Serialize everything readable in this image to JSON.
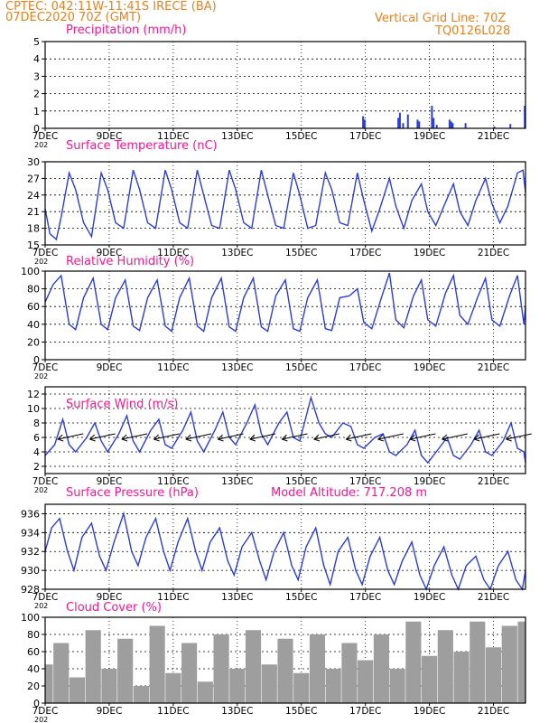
{
  "header": {
    "line1_left": "CPTEC:   042:11W-11:41S   IRECE (BA)",
    "line2_left": "07DEC2020 70Z (GMT)",
    "line1_right": "Vertical Grid Line: 70Z",
    "line2_right": "TQ0126L028"
  },
  "colors": {
    "header": "#e8821e",
    "title": "#ff1493",
    "line": "#2b3de0",
    "bar": "#9e9e9e",
    "arrow": "#000000"
  },
  "x_tick_labels": [
    "7DEC",
    "9DEC",
    "11DEC",
    "13DEC",
    "15DEC",
    "17DEC",
    "19DEC",
    "21DEC"
  ],
  "x_year_label": "202",
  "chart_data": [
    {
      "type": "bar",
      "title": "Precipitation  (mm/h)",
      "xlabel": "",
      "ylabel": "",
      "x_range_days": [
        0,
        15
      ],
      "ylim": [
        0,
        5
      ],
      "yticks": [
        0,
        1,
        2,
        3,
        4,
        5
      ],
      "x": [
        9.9,
        9.95,
        11.0,
        11.05,
        11.15,
        11.3,
        11.6,
        11.65,
        12.05,
        12.1,
        12.2,
        12.6,
        12.65,
        12.7,
        13.1,
        14.0,
        14.5,
        14.95,
        14.98
      ],
      "values": [
        0.7,
        0.5,
        0.6,
        0.9,
        0.3,
        0.8,
        0.5,
        0.4,
        1.3,
        0.6,
        0.2,
        0.5,
        0.4,
        0.3,
        0.3,
        0.1,
        0.25,
        1.3,
        0.5
      ]
    },
    {
      "type": "line",
      "title": "Surface Temperature (nC)",
      "xlabel": "",
      "ylabel": "",
      "x_range_days": [
        0,
        15
      ],
      "ylim": [
        15,
        30
      ],
      "yticks": [
        15,
        18,
        21,
        24,
        27,
        30
      ],
      "x": [
        0,
        0.15,
        0.35,
        0.5,
        0.75,
        0.95,
        1.2,
        1.45,
        1.75,
        1.95,
        2.2,
        2.45,
        2.75,
        2.95,
        3.2,
        3.45,
        3.75,
        3.95,
        4.2,
        4.45,
        4.75,
        4.95,
        5.2,
        5.45,
        5.75,
        5.95,
        6.2,
        6.45,
        6.75,
        6.95,
        7.2,
        7.45,
        7.75,
        7.95,
        8.2,
        8.45,
        8.75,
        8.95,
        9.2,
        9.45,
        9.75,
        9.95,
        10.2,
        10.45,
        10.75,
        10.95,
        11.2,
        11.45,
        11.75,
        11.95,
        12.2,
        12.45,
        12.75,
        12.95,
        13.2,
        13.45,
        13.75,
        13.95,
        14.2,
        14.45,
        14.75,
        14.92,
        15
      ],
      "values": [
        21.5,
        17,
        16,
        20,
        28,
        25,
        19,
        16.5,
        28,
        25,
        19,
        18,
        28.5,
        25,
        19,
        18,
        28.5,
        25,
        19,
        18,
        28.5,
        24,
        18.5,
        18,
        28.5,
        25,
        19,
        18,
        28.5,
        24,
        18.5,
        18,
        28,
        24,
        18,
        18.5,
        28,
        25,
        19,
        18.5,
        28,
        23,
        17.5,
        21.5,
        27,
        22,
        18,
        23,
        26,
        21,
        18.5,
        22,
        26,
        21,
        18.5,
        23,
        27,
        22.5,
        19,
        22,
        28,
        28.5,
        24.5
      ]
    },
    {
      "type": "line",
      "title": "Relative Humidity (%)",
      "xlabel": "",
      "ylabel": "",
      "x_range_days": [
        0,
        15
      ],
      "ylim": [
        0,
        100
      ],
      "yticks": [
        0,
        20,
        40,
        60,
        80,
        100
      ],
      "x": [
        0,
        0.25,
        0.5,
        0.75,
        0.95,
        1.2,
        1.5,
        1.75,
        1.95,
        2.2,
        2.5,
        2.75,
        2.95,
        3.2,
        3.5,
        3.75,
        3.95,
        4.2,
        4.5,
        4.75,
        4.95,
        5.2,
        5.5,
        5.75,
        5.95,
        6.2,
        6.5,
        6.75,
        6.95,
        7.2,
        7.5,
        7.75,
        7.95,
        8.2,
        8.5,
        8.75,
        8.95,
        9.2,
        9.5,
        9.75,
        9.95,
        10.2,
        10.5,
        10.75,
        10.95,
        11.2,
        11.5,
        11.75,
        11.95,
        12.2,
        12.5,
        12.75,
        12.95,
        13.2,
        13.5,
        13.75,
        13.95,
        14.2,
        14.5,
        14.75,
        14.95,
        15
      ],
      "values": [
        65,
        85,
        95,
        40,
        34,
        70,
        92,
        40,
        34,
        70,
        90,
        38,
        33,
        70,
        90,
        38,
        32,
        70,
        92,
        38,
        32,
        70,
        92,
        37,
        32,
        70,
        92,
        37,
        32,
        72,
        90,
        35,
        32,
        70,
        90,
        35,
        33,
        70,
        72,
        80,
        42,
        35,
        70,
        98,
        45,
        36,
        72,
        90,
        45,
        38,
        75,
        95,
        50,
        40,
        70,
        92,
        45,
        38,
        72,
        95,
        40,
        60
      ]
    },
    {
      "type": "line",
      "title": "Surface Wind  (m/s)",
      "xlabel": "",
      "ylabel": "",
      "x_range_days": [
        0,
        15
      ],
      "ylim": [
        1,
        13
      ],
      "yticks": [
        2,
        4,
        6,
        8,
        10,
        12
      ],
      "x": [
        0,
        0.3,
        0.55,
        0.75,
        0.95,
        1.3,
        1.55,
        1.75,
        1.95,
        2.3,
        2.55,
        2.75,
        2.95,
        3.3,
        3.55,
        3.75,
        3.95,
        4.3,
        4.55,
        4.75,
        4.95,
        5.3,
        5.55,
        5.75,
        5.95,
        6.3,
        6.55,
        6.75,
        6.95,
        7.3,
        7.55,
        7.75,
        7.95,
        8.3,
        8.55,
        8.75,
        8.95,
        9.3,
        9.55,
        9.75,
        9.95,
        10.3,
        10.55,
        10.75,
        10.95,
        11.3,
        11.55,
        11.75,
        11.95,
        12.3,
        12.55,
        12.75,
        12.95,
        13.3,
        13.55,
        13.75,
        13.95,
        14.3,
        14.55,
        14.75,
        14.95,
        15
      ],
      "values": [
        3.5,
        5,
        8.5,
        5,
        4,
        6,
        8,
        5.5,
        4,
        6.5,
        9,
        5.5,
        4,
        7,
        8.5,
        5,
        4.5,
        7,
        9.5,
        5.5,
        4,
        7,
        9.5,
        6,
        5,
        8,
        10.5,
        6.5,
        5,
        8,
        9.5,
        6,
        5.5,
        11.5,
        8,
        6.5,
        6,
        8,
        7.5,
        5,
        4.5,
        6,
        6.5,
        4,
        3.5,
        5,
        7,
        3.5,
        2.5,
        4.5,
        6,
        3.5,
        3,
        5,
        7,
        4,
        3.5,
        5.5,
        8,
        4.5,
        4,
        2.5
      ]
    },
    {
      "type": "line",
      "title": "Surface Pressure (hPa)",
      "subtitle": "Model Altitude: 717.208  m",
      "xlabel": "",
      "ylabel": "",
      "x_range_days": [
        0,
        15
      ],
      "ylim": [
        928,
        937
      ],
      "yticks": [
        928,
        930,
        932,
        934,
        936
      ],
      "x": [
        0,
        0.2,
        0.45,
        0.7,
        0.9,
        1.15,
        1.45,
        1.7,
        1.9,
        2.15,
        2.45,
        2.7,
        2.9,
        3.15,
        3.45,
        3.7,
        3.9,
        4.15,
        4.45,
        4.7,
        4.9,
        5.15,
        5.45,
        5.7,
        5.9,
        6.15,
        6.45,
        6.7,
        6.9,
        7.15,
        7.45,
        7.7,
        7.9,
        8.15,
        8.45,
        8.7,
        8.9,
        9.15,
        9.45,
        9.7,
        9.9,
        10.15,
        10.45,
        10.7,
        10.9,
        11.15,
        11.45,
        11.7,
        11.9,
        12.15,
        12.45,
        12.7,
        12.9,
        13.15,
        13.45,
        13.7,
        13.9,
        14.15,
        14.45,
        14.7,
        14.9,
        15
      ],
      "values": [
        932,
        934.5,
        935.5,
        932,
        930,
        933.5,
        935,
        931.5,
        930,
        933,
        936,
        932,
        930.5,
        933.5,
        935.5,
        932,
        930,
        933,
        935.5,
        932,
        930,
        933,
        934.5,
        931,
        929.5,
        932.5,
        934,
        931,
        929,
        932,
        934,
        930.5,
        929,
        932.5,
        934.5,
        930.5,
        928.5,
        932,
        933.5,
        930,
        928.5,
        931.5,
        933.5,
        930,
        928.5,
        931,
        933,
        929.5,
        928,
        930.5,
        932.5,
        929.5,
        928,
        930.5,
        931.5,
        929,
        928,
        930.5,
        932,
        929,
        928,
        930
      ]
    },
    {
      "type": "bar",
      "title": "Cloud Cover (%)",
      "xlabel": "",
      "ylabel": "",
      "x_range_days": [
        0,
        15
      ],
      "ylim": [
        0,
        100
      ],
      "yticks": [
        0,
        20,
        40,
        60,
        80,
        100
      ],
      "x": [
        0,
        0.5,
        1,
        1.5,
        2,
        2.5,
        3,
        3.5,
        4,
        4.5,
        5,
        5.5,
        6,
        6.5,
        7,
        7.5,
        8,
        8.5,
        9,
        9.5,
        10,
        10.5,
        11,
        11.5,
        12,
        12.5,
        13,
        13.5,
        14,
        14.5,
        15
      ],
      "values": [
        45,
        70,
        30,
        85,
        40,
        75,
        20,
        90,
        35,
        70,
        25,
        80,
        40,
        85,
        45,
        75,
        35,
        80,
        40,
        70,
        50,
        80,
        40,
        95,
        55,
        85,
        60,
        95,
        65,
        90,
        95
      ]
    }
  ]
}
